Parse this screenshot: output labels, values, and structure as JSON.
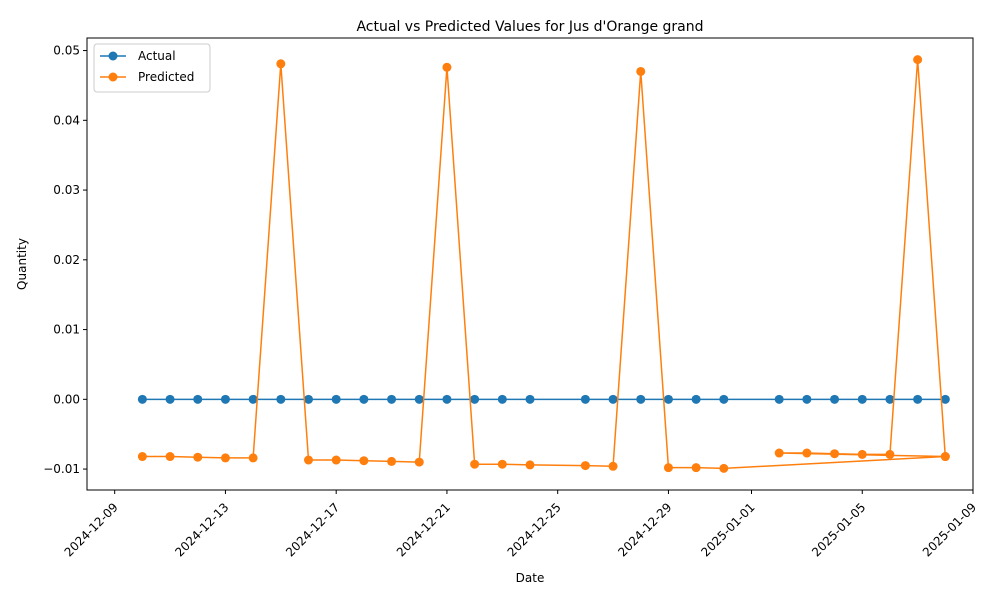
{
  "chart_data": {
    "type": "line",
    "title": "Actual vs Predicted Values for Jus d'Orange grand",
    "xlabel": "Date",
    "ylabel": "Quantity",
    "xlim": [
      "2024-12-08",
      "2025-01-09"
    ],
    "ylim": [
      -0.013,
      0.0518
    ],
    "x_ticks": [
      "2024-12-09",
      "2024-12-13",
      "2024-12-17",
      "2024-12-21",
      "2024-12-25",
      "2024-12-29",
      "2025-01-01",
      "2025-01-05",
      "2025-01-09"
    ],
    "y_ticks": [
      -0.01,
      0.0,
      0.01,
      0.02,
      0.03,
      0.04,
      0.05
    ],
    "y_tick_labels": [
      "−0.01",
      "0.00",
      "0.01",
      "0.02",
      "0.03",
      "0.04",
      "0.05"
    ],
    "grid": false,
    "legend_position": "top-left",
    "series": [
      {
        "name": "Actual",
        "color": "#1f77b4",
        "marker": "circle",
        "points": [
          [
            "2024-12-10",
            0.0
          ],
          [
            "2024-12-11",
            0.0
          ],
          [
            "2024-12-12",
            0.0
          ],
          [
            "2024-12-13",
            0.0
          ],
          [
            "2024-12-14",
            0.0
          ],
          [
            "2024-12-15",
            0.0
          ],
          [
            "2024-12-16",
            0.0
          ],
          [
            "2024-12-17",
            0.0
          ],
          [
            "2024-12-18",
            0.0
          ],
          [
            "2024-12-19",
            0.0
          ],
          [
            "2024-12-20",
            0.0
          ],
          [
            "2024-12-21",
            0.0
          ],
          [
            "2024-12-22",
            0.0
          ],
          [
            "2024-12-23",
            0.0
          ],
          [
            "2024-12-24",
            0.0
          ],
          [
            "2024-12-26",
            0.0
          ],
          [
            "2024-12-27",
            0.0
          ],
          [
            "2024-12-28",
            0.0
          ],
          [
            "2024-12-29",
            0.0
          ],
          [
            "2024-12-30",
            0.0
          ],
          [
            "2024-12-31",
            0.0
          ],
          [
            "2025-01-02",
            0.0
          ],
          [
            "2025-01-03",
            0.0
          ],
          [
            "2025-01-04",
            0.0
          ],
          [
            "2025-01-05",
            0.0
          ],
          [
            "2025-01-06",
            0.0
          ],
          [
            "2025-01-07",
            0.0
          ],
          [
            "2025-01-08",
            0.0
          ]
        ]
      },
      {
        "name": "Predicted",
        "color": "#ff7f0e",
        "marker": "circle",
        "points": [
          [
            "2024-12-10",
            -0.0082
          ],
          [
            "2024-12-11",
            -0.0082
          ],
          [
            "2024-12-12",
            -0.0083
          ],
          [
            "2024-12-13",
            -0.0084
          ],
          [
            "2024-12-14",
            -0.0084
          ],
          [
            "2024-12-15",
            0.0481
          ],
          [
            "2024-12-16",
            -0.0087
          ],
          [
            "2024-12-17",
            -0.0087
          ],
          [
            "2024-12-18",
            -0.0088
          ],
          [
            "2024-12-19",
            -0.0089
          ],
          [
            "2024-12-20",
            -0.009
          ],
          [
            "2024-12-21",
            0.0476
          ],
          [
            "2024-12-22",
            -0.0093
          ],
          [
            "2024-12-23",
            -0.0093
          ],
          [
            "2024-12-24",
            -0.0094
          ],
          [
            "2024-12-26",
            -0.0095
          ],
          [
            "2024-12-27",
            -0.0096
          ],
          [
            "2024-12-28",
            0.047
          ],
          [
            "2024-12-29",
            -0.0098
          ],
          [
            "2024-12-30",
            -0.0098
          ],
          [
            "2024-12-31",
            -0.0099
          ],
          [
            "2025-01-08",
            -0.0082
          ],
          [
            "2025-01-02",
            -0.0077
          ],
          [
            "2025-01-03",
            -0.0077
          ],
          [
            "2025-01-04",
            -0.0078
          ],
          [
            "2025-01-05",
            -0.0079
          ],
          [
            "2025-01-06",
            -0.0079
          ],
          [
            "2025-01-07",
            0.0487
          ],
          [
            "2025-01-08",
            -0.0082
          ]
        ]
      }
    ]
  }
}
